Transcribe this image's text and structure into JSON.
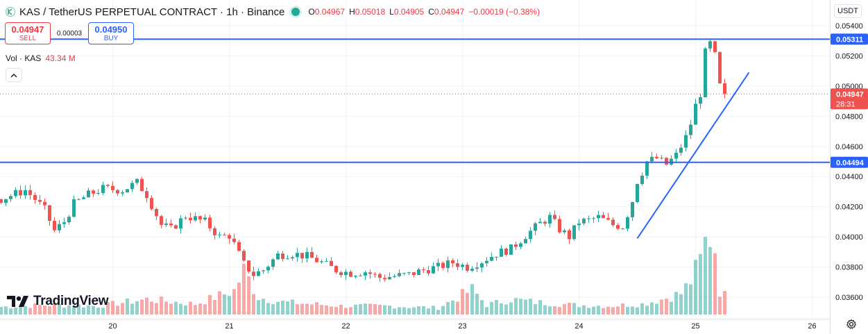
{
  "header": {
    "title": "KAS / TetherUS PERPETUAL CONTRACT · 1h · Binance",
    "ohlc": [
      {
        "k": "O",
        "v": "0.04967"
      },
      {
        "k": "H",
        "v": "0.05018"
      },
      {
        "k": "L",
        "v": "0.04905"
      },
      {
        "k": "C",
        "v": "0.04947"
      },
      {
        "k": "",
        "v": "−0.00019 (−0.38%)"
      }
    ]
  },
  "trade": {
    "sell_price": "0.04947",
    "sell_label": "SELL",
    "spread": "0.00003",
    "buy_price": "0.04950",
    "buy_label": "BUY"
  },
  "volume_legend": {
    "label": "Vol · KAS",
    "value": "43.34 M"
  },
  "currency": "USDT",
  "brand": "TradingView",
  "colors": {
    "up": "#26a69a",
    "down": "#ef5350",
    "line": "#2962ff",
    "grid": "#f0f3fa",
    "axis_text": "#131722"
  },
  "chart_data": {
    "type": "candlestick",
    "symbol": "KAS / TetherUS PERPETUAL CONTRACT",
    "interval": "1h",
    "exchange": "Binance",
    "ylim": [
      0.0355,
      0.0545
    ],
    "y_ticks": [
      "0.05400",
      "0.05200",
      "0.05000",
      "0.04800",
      "0.04600",
      "0.04400",
      "0.04200",
      "0.04000",
      "0.03800",
      "0.03600"
    ],
    "x_ticks": [
      {
        "label": "20",
        "bar": 23
      },
      {
        "label": "21",
        "bar": 47
      },
      {
        "label": "22",
        "bar": 71
      },
      {
        "label": "23",
        "bar": 95
      },
      {
        "label": "24",
        "bar": 119
      },
      {
        "label": "25",
        "bar": 143
      },
      {
        "label": "26",
        "bar": 167
      }
    ],
    "bar_count_visible": 180,
    "close_anchors": [
      [
        0,
        0.0425
      ],
      [
        5,
        0.0431
      ],
      [
        7,
        0.0425
      ],
      [
        9,
        0.0418
      ],
      [
        11,
        0.0404
      ],
      [
        13,
        0.041
      ],
      [
        15,
        0.0422
      ],
      [
        18,
        0.0428
      ],
      [
        21,
        0.0432
      ],
      [
        25,
        0.0431
      ],
      [
        28,
        0.0436
      ],
      [
        30,
        0.0428
      ],
      [
        33,
        0.0408
      ],
      [
        35,
        0.0405
      ],
      [
        38,
        0.0414
      ],
      [
        42,
        0.041
      ],
      [
        45,
        0.04
      ],
      [
        47,
        0.0401
      ],
      [
        48,
        0.0395
      ],
      [
        50,
        0.0382
      ],
      [
        52,
        0.0375
      ],
      [
        54,
        0.0378
      ],
      [
        57,
        0.0388
      ],
      [
        60,
        0.0389
      ],
      [
        63,
        0.0387
      ],
      [
        66,
        0.0383
      ],
      [
        69,
        0.0378
      ],
      [
        72,
        0.0376
      ],
      [
        75,
        0.0377
      ],
      [
        78,
        0.0373
      ],
      [
        81,
        0.0374
      ],
      [
        84,
        0.0375
      ],
      [
        87,
        0.0378
      ],
      [
        90,
        0.038
      ],
      [
        93,
        0.0383
      ],
      [
        96,
        0.038
      ],
      [
        99,
        0.0384
      ],
      [
        102,
        0.0389
      ],
      [
        105,
        0.0392
      ],
      [
        108,
        0.0401
      ],
      [
        111,
        0.0409
      ],
      [
        113,
        0.0413
      ],
      [
        115,
        0.0405
      ],
      [
        117,
        0.04
      ],
      [
        119,
        0.041
      ],
      [
        121,
        0.0411
      ],
      [
        123,
        0.0413
      ],
      [
        126,
        0.0408
      ],
      [
        128,
        0.0407
      ],
      [
        129,
        0.0415
      ],
      [
        130,
        0.0424
      ],
      [
        131,
        0.0437
      ],
      [
        132,
        0.0443
      ],
      [
        133,
        0.045
      ],
      [
        135,
        0.0452
      ],
      [
        137,
        0.0448
      ],
      [
        139,
        0.0454
      ],
      [
        141,
        0.0466
      ],
      [
        142,
        0.0475
      ],
      [
        143,
        0.0487
      ],
      [
        144,
        0.0495
      ],
      [
        145,
        0.0522
      ],
      [
        146,
        0.0528
      ],
      [
        147,
        0.052
      ],
      [
        148,
        0.05
      ],
      [
        149,
        0.04947
      ]
    ],
    "volume_anchors": [
      [
        0,
        0.8
      ],
      [
        10,
        1.0
      ],
      [
        20,
        0.9
      ],
      [
        30,
        1.6
      ],
      [
        34,
        1.4
      ],
      [
        40,
        1.1
      ],
      [
        48,
        2.5
      ],
      [
        50,
        4.6
      ],
      [
        53,
        1.8
      ],
      [
        58,
        1.3
      ],
      [
        70,
        0.9
      ],
      [
        80,
        0.9
      ],
      [
        90,
        0.7
      ],
      [
        97,
        2.6
      ],
      [
        100,
        1.0
      ],
      [
        105,
        1.6
      ],
      [
        110,
        1.3
      ],
      [
        118,
        1.0
      ],
      [
        125,
        0.9
      ],
      [
        132,
        1.1
      ],
      [
        136,
        1.6
      ],
      [
        140,
        2.2
      ],
      [
        142,
        3.5
      ],
      [
        144,
        5.6
      ],
      [
        145,
        7.5
      ],
      [
        146,
        8.2
      ],
      [
        147,
        7.0
      ],
      [
        148,
        2.5
      ],
      [
        149,
        2.0
      ]
    ],
    "volume_max": 8.2,
    "horizontal_levels": [
      {
        "price": 0.05311,
        "label": "0.05311"
      },
      {
        "price": 0.04494,
        "label": "0.04494"
      }
    ],
    "trend_line": {
      "from": {
        "bar": 131,
        "price": 0.0399
      },
      "to": {
        "bar": 154,
        "price": 0.0509
      }
    },
    "last_price": {
      "price": 0.04947,
      "label": "0.04947",
      "countdown": "28:31"
    }
  }
}
